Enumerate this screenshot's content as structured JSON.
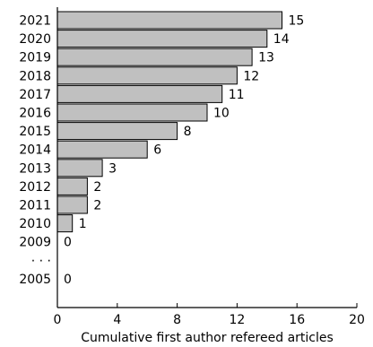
{
  "chart_data": {
    "type": "bar",
    "orientation": "horizontal",
    "categories": [
      "2021",
      "2020",
      "2019",
      "2018",
      "2017",
      "2016",
      "2015",
      "2014",
      "2013",
      "2012",
      "2011",
      "2010",
      "2009",
      "· · ·",
      "2005"
    ],
    "values": [
      15,
      14,
      13,
      12,
      11,
      10,
      8,
      6,
      3,
      2,
      2,
      1,
      0,
      null,
      0
    ],
    "data_labels": [
      "15",
      "14",
      "13",
      "12",
      "11",
      "10",
      "8",
      "6",
      "3",
      "2",
      "2",
      "1",
      "0",
      "",
      "0"
    ],
    "xlabel": "Cumulative first author refereed articles",
    "ylabel": "",
    "title": "",
    "xlim": [
      0,
      20
    ],
    "xticks": [
      0,
      4,
      8,
      12,
      16,
      20
    ],
    "grid": false,
    "bar_color": "#c0c0c0",
    "bar_edge_color": "#000000"
  }
}
